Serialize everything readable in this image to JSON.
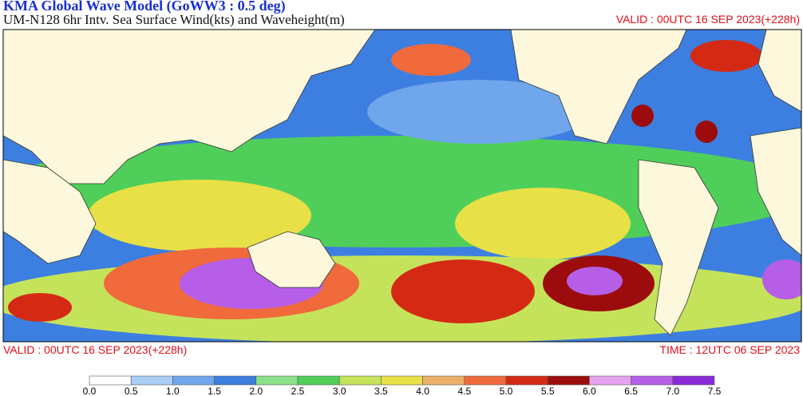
{
  "header": {
    "title": "KMA  Global Wave Model (GoWW3 : 0.5 deg)",
    "subtitle": "UM-N128  6hr Intv. Sea Surface Wind(kts) and Waveheight(m)",
    "valid_top": "VALID : 00UTC 16 SEP 2023(+228h)"
  },
  "footer": {
    "valid": "VALID : 00UTC 16 SEP 2023(+228h)",
    "time": "TIME : 12UTC 06 SEP 2023"
  },
  "colorbar": {
    "labels": [
      "0.0",
      "0.5",
      "1.0",
      "1.5",
      "2.0",
      "2.5",
      "3.0",
      "3.5",
      "4.0",
      "4.5",
      "5.0",
      "5.5",
      "6.0",
      "6.5",
      "7.0",
      "7.5"
    ],
    "colors": [
      "#ffffff",
      "#a9cdf3",
      "#6fa6ec",
      "#3d7fe0",
      "#8de08a",
      "#4fcf5a",
      "#c5e35a",
      "#e8e047",
      "#eab06a",
      "#f06a3c",
      "#d42a14",
      "#9c0c0c",
      "#e6a4f0",
      "#b65ee8",
      "#8a2ad8"
    ]
  }
}
